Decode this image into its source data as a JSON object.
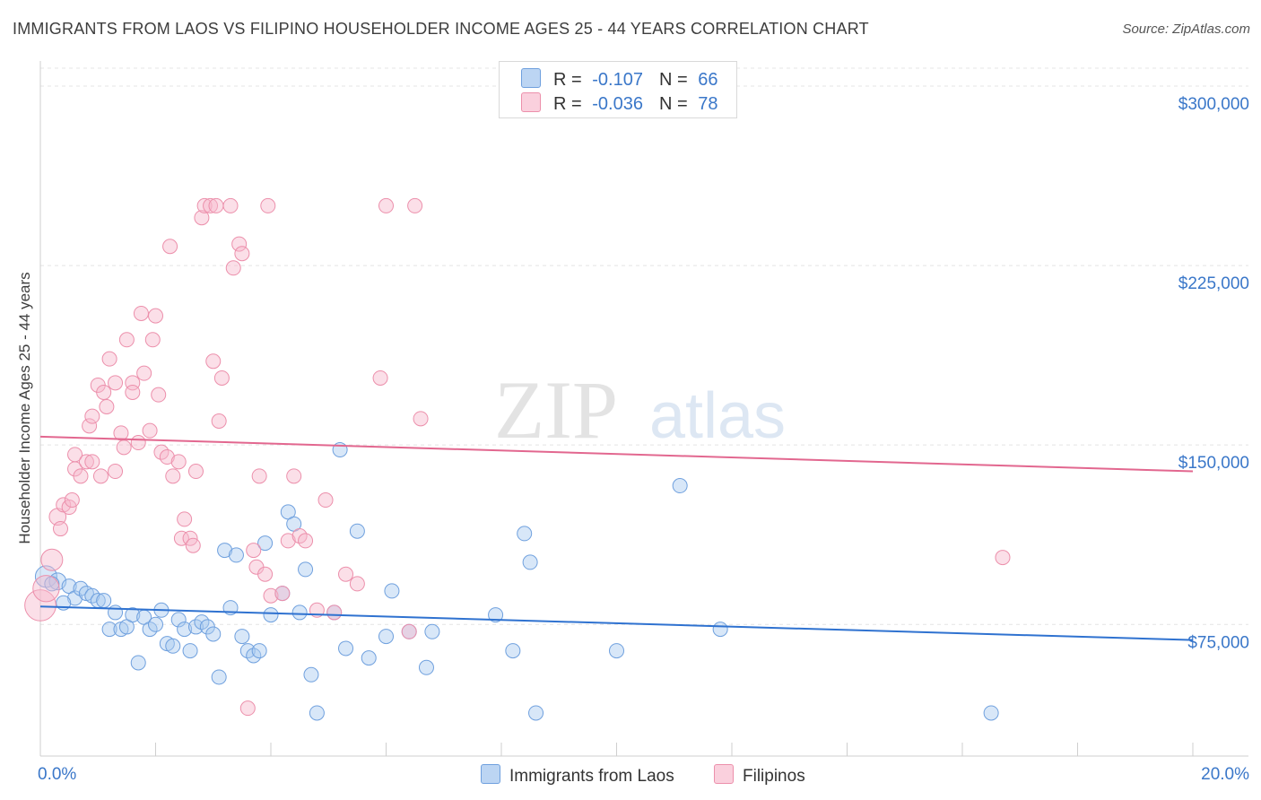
{
  "header": {
    "title": "IMMIGRANTS FROM LAOS VS FILIPINO HOUSEHOLDER INCOME AGES 25 - 44 YEARS CORRELATION CHART",
    "source": "Source: ZipAtlas.com"
  },
  "watermark": {
    "zip": "ZIP",
    "atlas": "atlas"
  },
  "legend": {
    "rows": [
      {
        "r_label": "R =",
        "r_value": "-0.107",
        "n_label": "N =",
        "n_value": "66",
        "color": "#a9c9f0"
      },
      {
        "r_label": "R =",
        "r_value": "-0.036",
        "n_label": "N =",
        "n_value": "78",
        "color": "#f6b8cb"
      }
    ]
  },
  "bottom_legend": {
    "laos": "Immigrants from Laos",
    "filipinos": "Filipinos"
  },
  "chart_data": {
    "type": "scatter",
    "title": "IMMIGRANTS FROM LAOS VS FILIPINO HOUSEHOLDER INCOME AGES 25 - 44 YEARS CORRELATION CHART",
    "xlabel": "",
    "ylabel": "Householder Income Ages 25 - 44 years",
    "xlim": [
      0,
      20
    ],
    "ylim": [
      20000,
      307500
    ],
    "x_tick_labels": [
      "0.0%",
      "20.0%"
    ],
    "y_ticks": [
      {
        "value": 75000,
        "label": "$75,000"
      },
      {
        "value": 150000,
        "label": "$150,000"
      },
      {
        "value": 225000,
        "label": "$225,000"
      },
      {
        "value": 300000,
        "label": "$300,000"
      }
    ],
    "grid": true,
    "legend_position": "top-center",
    "series": [
      {
        "name": "Immigrants from Laos",
        "color": "#6fa0de",
        "fill": "#a9c9f0",
        "line_color": "#2f72d0",
        "trend": {
          "x0": 0,
          "y0": 82500,
          "x1": 20,
          "y1": 68500
        },
        "points": [
          [
            0.1,
            95000,
            18
          ],
          [
            0.3,
            93000,
            14
          ],
          [
            0.5,
            91000,
            12
          ],
          [
            0.6,
            86000,
            12
          ],
          [
            0.7,
            90000,
            12
          ],
          [
            0.8,
            88000,
            12
          ],
          [
            0.9,
            87000,
            12
          ],
          [
            1.0,
            85000,
            12
          ],
          [
            1.1,
            85000,
            12
          ],
          [
            1.3,
            80000,
            12
          ],
          [
            1.2,
            73000,
            12
          ],
          [
            1.4,
            73000,
            12
          ],
          [
            1.5,
            74000,
            12
          ],
          [
            1.6,
            79000,
            12
          ],
          [
            1.7,
            59000,
            12
          ],
          [
            1.8,
            78000,
            12
          ],
          [
            1.9,
            73000,
            12
          ],
          [
            2.0,
            75000,
            12
          ],
          [
            2.1,
            81000,
            12
          ],
          [
            2.2,
            67000,
            12
          ],
          [
            2.3,
            66000,
            12
          ],
          [
            2.4,
            77000,
            12
          ],
          [
            2.5,
            73000,
            12
          ],
          [
            2.6,
            64000,
            12
          ],
          [
            2.7,
            74000,
            12
          ],
          [
            2.8,
            76000,
            12
          ],
          [
            2.9,
            74000,
            12
          ],
          [
            3.0,
            71000,
            12
          ],
          [
            3.1,
            53000,
            12
          ],
          [
            3.2,
            106000,
            12
          ],
          [
            3.3,
            82000,
            12
          ],
          [
            3.4,
            104000,
            12
          ],
          [
            3.5,
            70000,
            12
          ],
          [
            3.6,
            64000,
            12
          ],
          [
            3.7,
            62000,
            12
          ],
          [
            3.8,
            64000,
            12
          ],
          [
            3.9,
            109000,
            12
          ],
          [
            4.0,
            79000,
            12
          ],
          [
            4.2,
            88000,
            12
          ],
          [
            4.3,
            122000,
            12
          ],
          [
            4.4,
            117000,
            12
          ],
          [
            4.6,
            98000,
            12
          ],
          [
            4.7,
            54000,
            12
          ],
          [
            4.8,
            38000,
            12
          ],
          [
            5.1,
            80000,
            12
          ],
          [
            5.2,
            148000,
            12
          ],
          [
            5.3,
            65000,
            12
          ],
          [
            5.5,
            114000,
            12
          ],
          [
            5.7,
            61000,
            12
          ],
          [
            6.0,
            70000,
            12
          ],
          [
            6.1,
            89000,
            12
          ],
          [
            6.4,
            72000,
            12
          ],
          [
            6.7,
            57000,
            12
          ],
          [
            6.8,
            72000,
            12
          ],
          [
            7.9,
            79000,
            12
          ],
          [
            8.2,
            64000,
            12
          ],
          [
            8.4,
            113000,
            12
          ],
          [
            8.5,
            101000,
            12
          ],
          [
            8.6,
            38000,
            12
          ],
          [
            10.0,
            64000,
            12
          ],
          [
            11.1,
            133000,
            12
          ],
          [
            11.8,
            73000,
            12
          ],
          [
            16.5,
            38000,
            12
          ],
          [
            0.2,
            92000,
            12
          ],
          [
            0.4,
            84000,
            12
          ],
          [
            4.5,
            80000,
            12
          ]
        ]
      },
      {
        "name": "Filipinos",
        "color": "#ec8fab",
        "fill": "#f6b8cb",
        "line_color": "#e2678f",
        "trend": {
          "x0": 0,
          "y0": 153500,
          "x1": 20,
          "y1": 139000
        },
        "points": [
          [
            0.0,
            83000,
            26
          ],
          [
            0.1,
            90000,
            22
          ],
          [
            0.2,
            102000,
            18
          ],
          [
            0.3,
            120000,
            14
          ],
          [
            0.35,
            115000,
            12
          ],
          [
            0.4,
            125000,
            12
          ],
          [
            0.5,
            124000,
            12
          ],
          [
            0.55,
            127000,
            12
          ],
          [
            0.6,
            140000,
            12
          ],
          [
            0.6,
            146000,
            12
          ],
          [
            0.7,
            137000,
            12
          ],
          [
            0.8,
            143000,
            12
          ],
          [
            0.85,
            158000,
            12
          ],
          [
            0.9,
            162000,
            12
          ],
          [
            0.9,
            143000,
            12
          ],
          [
            1.0,
            175000,
            12
          ],
          [
            1.05,
            137000,
            12
          ],
          [
            1.1,
            172000,
            12
          ],
          [
            1.15,
            166000,
            12
          ],
          [
            1.2,
            186000,
            12
          ],
          [
            1.3,
            139000,
            12
          ],
          [
            1.3,
            176000,
            12
          ],
          [
            1.4,
            155000,
            12
          ],
          [
            1.45,
            149000,
            12
          ],
          [
            1.5,
            194000,
            12
          ],
          [
            1.6,
            176000,
            12
          ],
          [
            1.6,
            172000,
            12
          ],
          [
            1.7,
            151000,
            12
          ],
          [
            1.75,
            205000,
            12
          ],
          [
            1.8,
            180000,
            12
          ],
          [
            1.9,
            156000,
            12
          ],
          [
            1.95,
            194000,
            12
          ],
          [
            2.0,
            204000,
            12
          ],
          [
            2.05,
            171000,
            12
          ],
          [
            2.1,
            147000,
            12
          ],
          [
            2.2,
            145000,
            12
          ],
          [
            2.25,
            233000,
            12
          ],
          [
            2.3,
            137000,
            12
          ],
          [
            2.4,
            143000,
            12
          ],
          [
            2.45,
            111000,
            12
          ],
          [
            2.5,
            119000,
            12
          ],
          [
            2.6,
            111000,
            12
          ],
          [
            2.65,
            108000,
            12
          ],
          [
            2.7,
            139000,
            12
          ],
          [
            2.8,
            245000,
            12
          ],
          [
            2.85,
            250000,
            12
          ],
          [
            2.95,
            250000,
            12
          ],
          [
            3.0,
            185000,
            12
          ],
          [
            3.05,
            250000,
            12
          ],
          [
            3.1,
            160000,
            12
          ],
          [
            3.15,
            178000,
            12
          ],
          [
            3.3,
            250000,
            12
          ],
          [
            3.35,
            224000,
            12
          ],
          [
            3.45,
            234000,
            12
          ],
          [
            3.5,
            230000,
            12
          ],
          [
            3.6,
            40000,
            12
          ],
          [
            3.7,
            106000,
            12
          ],
          [
            3.75,
            99000,
            12
          ],
          [
            3.8,
            137000,
            12
          ],
          [
            3.9,
            96000,
            12
          ],
          [
            3.95,
            250000,
            12
          ],
          [
            4.0,
            87000,
            12
          ],
          [
            4.2,
            88000,
            12
          ],
          [
            4.3,
            110000,
            12
          ],
          [
            4.4,
            137000,
            12
          ],
          [
            4.5,
            112000,
            12
          ],
          [
            4.6,
            110000,
            12
          ],
          [
            4.8,
            81000,
            12
          ],
          [
            4.95,
            127000,
            12
          ],
          [
            5.1,
            80000,
            12
          ],
          [
            5.3,
            96000,
            12
          ],
          [
            5.5,
            92000,
            12
          ],
          [
            5.9,
            178000,
            12
          ],
          [
            6.0,
            250000,
            12
          ],
          [
            6.4,
            72000,
            12
          ],
          [
            6.5,
            250000,
            12
          ],
          [
            6.6,
            161000,
            12
          ],
          [
            16.7,
            103000,
            12
          ]
        ]
      }
    ]
  }
}
